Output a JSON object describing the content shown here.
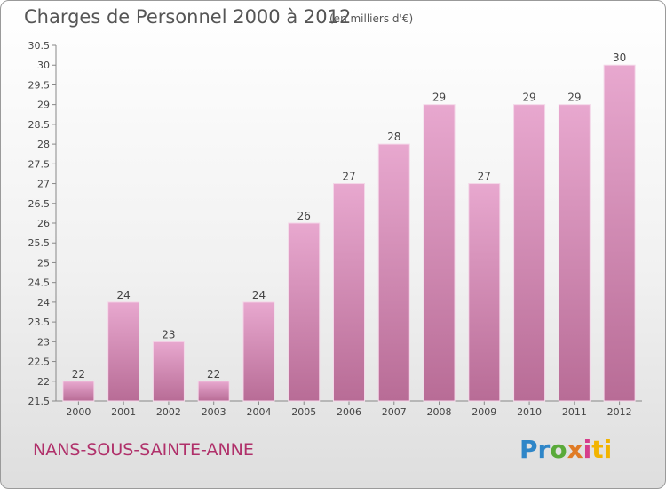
{
  "header": {
    "title": "Charges de Personnel 2000 à 2012",
    "subtitle": "(en milliers d'€)"
  },
  "footer": {
    "commune": "NANS-SOUS-SAINTE-ANNE",
    "logo": [
      "Pr",
      "o",
      "x",
      "i",
      "ti"
    ]
  },
  "colors": {
    "bar_top": "#e8a8cf",
    "bar_bottom": "#b86c96",
    "title": "#555555",
    "commune": "#b0306a"
  },
  "chart_data": {
    "type": "bar",
    "categories": [
      "2000",
      "2001",
      "2002",
      "2003",
      "2004",
      "2005",
      "2006",
      "2007",
      "2008",
      "2009",
      "2010",
      "2011",
      "2012"
    ],
    "values": [
      22,
      24,
      23,
      22,
      24,
      26,
      27,
      28,
      29,
      27,
      29,
      29,
      30
    ],
    "ylim": [
      21.5,
      30.5
    ],
    "yticks": [
      "21.5",
      "22",
      "22.5",
      "23",
      "23.5",
      "24",
      "24.5",
      "25",
      "25.5",
      "26",
      "26.5",
      "27",
      "27.5",
      "28",
      "28.5",
      "29",
      "29.5",
      "30",
      "30.5"
    ],
    "grid": false
  }
}
